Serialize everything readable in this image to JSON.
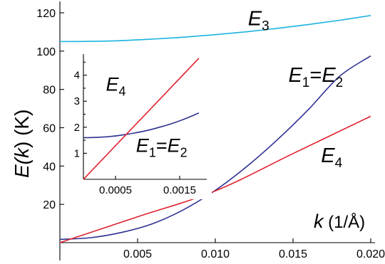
{
  "chart_data": [
    {
      "id": "main",
      "type": "line",
      "xlim": [
        0,
        0.02
      ],
      "ylim": [
        0,
        120
      ],
      "x_ticks": [
        0.005,
        0.01,
        0.015,
        0.02
      ],
      "x_tick_labels": [
        "0.005",
        "0.010",
        "0.015",
        "0.020"
      ],
      "y_ticks": [
        20,
        40,
        60,
        80,
        100,
        120
      ],
      "y_tick_labels": [
        "20",
        "40",
        "60",
        "80",
        "100",
        "120"
      ],
      "ylabel": {
        "prefix": "E(",
        "var": "k",
        "suffix": ")  (K)"
      },
      "xlabel": {
        "var": "k",
        "unit": "(1/Å)"
      },
      "grid": false,
      "series": [
        {
          "key": "E3",
          "color": "#1bb2e0",
          "x": [
            0,
            0.002,
            0.004,
            0.006,
            0.008,
            0.01,
            0.012,
            0.014,
            0.016,
            0.018,
            0.02
          ],
          "y": [
            105,
            105.1,
            105.5,
            106.3,
            107.3,
            108.6,
            110.1,
            111.9,
            113.9,
            116.1,
            118.6
          ]
        },
        {
          "key": "E1E2",
          "color": "#2e3192",
          "x": [
            0,
            0.002,
            0.004,
            0.006,
            0.008,
            0.01,
            0.012,
            0.014,
            0.016,
            0.018,
            0.02
          ],
          "y": [
            1.7,
            2.6,
            5.4,
            10.0,
            17.4,
            27.3,
            39.6,
            53.8,
            69.6,
            86.9,
            97.5
          ]
        },
        {
          "key": "E4",
          "color": "#e0202e",
          "x": [
            0,
            0.005,
            0.01,
            0.015,
            0.02
          ],
          "y": [
            0,
            13.5,
            27.0,
            46.5,
            66
          ]
        }
      ],
      "annotations": [
        {
          "base": "E",
          "sub": "3",
          "x": 0.0121,
          "y": 113.5
        },
        {
          "base": "E",
          "sub": "1",
          "eq": "=",
          "base2": "E",
          "sub2": "2",
          "x": 0.0147,
          "y": 84
        },
        {
          "base": "E",
          "sub": "4",
          "x": 0.0168,
          "y": 42
        }
      ]
    },
    {
      "id": "inset",
      "type": "line",
      "xlim": [
        0,
        0.0019
      ],
      "ylim": [
        0,
        4.7
      ],
      "x_ticks": [
        0.0005,
        0.0015
      ],
      "x_tick_labels": [
        "0.0005",
        "0.0015"
      ],
      "y_ticks": [
        1,
        1.5,
        2,
        2.5,
        3,
        3.5,
        4,
        4.5
      ],
      "y_tick_labels": [
        "1",
        "",
        "2",
        "",
        "3",
        "",
        "4",
        ""
      ],
      "grid": false,
      "series": [
        {
          "key": "E1E2",
          "color": "#2e3192",
          "x": [
            0,
            0.0002,
            0.0004,
            0.0006,
            0.0008,
            0.001,
            0.0012,
            0.0014,
            0.0016,
            0.0018
          ],
          "y": [
            1.6,
            1.61,
            1.64,
            1.7,
            1.78,
            1.88,
            2.01,
            2.16,
            2.34,
            2.55
          ]
        },
        {
          "key": "E4",
          "color": "#e0202e",
          "x": [
            0,
            0.0018
          ],
          "y": [
            0,
            4.65
          ]
        }
      ],
      "annotations": [
        {
          "base": "E",
          "sub": "4",
          "x": 0.00035,
          "y": 3.4
        },
        {
          "base": "E",
          "sub": "1",
          "eq": "=",
          "base2": "E",
          "sub2": "2",
          "x": 0.00082,
          "y": 1.05
        }
      ]
    }
  ]
}
